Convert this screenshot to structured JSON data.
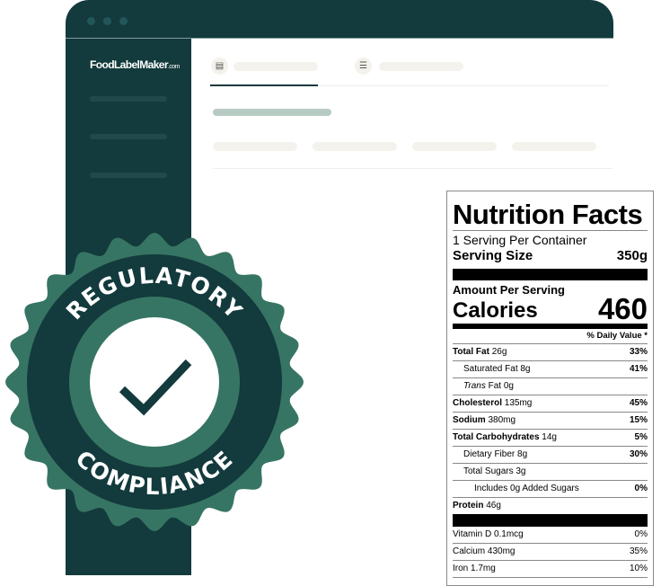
{
  "colors": {
    "dark": "#133a3c",
    "green": "#367563",
    "pill": "#f4f2ec"
  },
  "app": {
    "logo_main": "FoodLabelMaker",
    "logo_suffix": ".com"
  },
  "tabs": [
    {
      "icon": "nutrition-label-icon",
      "active": true
    },
    {
      "icon": "sliders-icon",
      "active": false
    }
  ],
  "badge": {
    "top_text": "REGULATORY",
    "bottom_text": "COMPLIANCE",
    "icon": "checkmark-icon"
  },
  "label": {
    "title": "Nutrition Facts",
    "servings": "1 Serving Per Container",
    "serving_size_label": "Serving Size",
    "serving_size_value": "350g",
    "amount_per_serving": "Amount Per Serving",
    "calories_label": "Calories",
    "calories_value": "460",
    "daily_value_header": "% Daily Value *",
    "rows": [
      {
        "name": "Total Fat",
        "amount": "26g",
        "dv": "33%"
      },
      {
        "name": "Saturated Fat",
        "amount": "8g",
        "dv": "41%"
      },
      {
        "name": "Trans",
        "amount": "Fat 0g",
        "dv": ""
      },
      {
        "name": "Cholesterol",
        "amount": "135mg",
        "dv": "45%"
      },
      {
        "name": "Sodium",
        "amount": "380mg",
        "dv": "15%"
      },
      {
        "name": "Total Carbohydrates",
        "amount": "14g",
        "dv": "5%"
      },
      {
        "name": "Dietary Fiber",
        "amount": "8g",
        "dv": "30%"
      },
      {
        "name": "Total Sugars",
        "amount": "3g",
        "dv": ""
      },
      {
        "name": "Includes 0g Added Sugars",
        "amount": "",
        "dv": "0%"
      },
      {
        "name": "Protein",
        "amount": "46g",
        "dv": ""
      }
    ],
    "micros": [
      {
        "name": "Vitamin D",
        "amount": "0.1mcg",
        "dv": "0%"
      },
      {
        "name": "Calcium",
        "amount": "430mg",
        "dv": "35%"
      },
      {
        "name": "Iron",
        "amount": "1.7mg",
        "dv": "10%"
      }
    ]
  }
}
